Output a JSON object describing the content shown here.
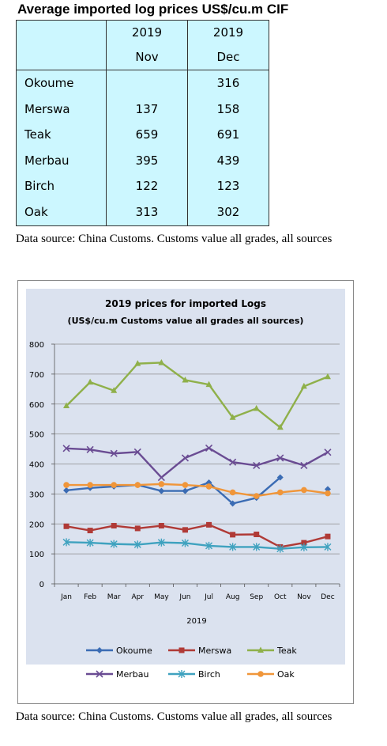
{
  "table": {
    "title": "Average imported log prices US$/cu.m CIF",
    "col1": {
      "year": "2019",
      "month": "Nov"
    },
    "col2": {
      "year": "2019",
      "month": "Dec"
    },
    "rows": [
      {
        "name": "Okoume",
        "nov": "",
        "dec": "316"
      },
      {
        "name": "Merswa",
        "nov": "137",
        "dec": "158"
      },
      {
        "name": "Teak",
        "nov": "659",
        "dec": "691"
      },
      {
        "name": "Merbau",
        "nov": "395",
        "dec": "439"
      },
      {
        "name": "Birch",
        "nov": "122",
        "dec": "123"
      },
      {
        "name": "Oak",
        "nov": "313",
        "dec": "302"
      }
    ]
  },
  "source_note_1": "Data source: China Customs. Customs value all grades, all sources",
  "source_note_2": "Data source: China Customs. Customs value all grades, all sources",
  "chart_data": {
    "type": "line",
    "title": "2019 prices for imported Logs",
    "subtitle": "(US$/cu.m Customs value all grades all sources)",
    "xlabel": "2019",
    "ylabel": "",
    "ylim": [
      0,
      800
    ],
    "yticks": [
      0,
      100,
      200,
      300,
      400,
      500,
      600,
      700,
      800
    ],
    "grid": true,
    "legend": "bottom",
    "categories": [
      "Jan",
      "Feb",
      "Mar",
      "Apr",
      "May",
      "Jun",
      "Jul",
      "Aug",
      "Sep",
      "Oct",
      "Nov",
      "Dec"
    ],
    "series": [
      {
        "name": "Okoume",
        "color": "#3b6cb4",
        "marker": "diamond",
        "values": [
          312,
          320,
          325,
          330,
          310,
          310,
          338,
          268,
          287,
          355,
          null,
          316
        ]
      },
      {
        "name": "Merswa",
        "color": "#b03a36",
        "marker": "square",
        "values": [
          192,
          178,
          194,
          185,
          194,
          180,
          197,
          164,
          165,
          123,
          137,
          158
        ]
      },
      {
        "name": "Teak",
        "color": "#8fb04a",
        "marker": "triangle",
        "values": [
          594,
          673,
          645,
          735,
          738,
          680,
          665,
          555,
          585,
          522,
          659,
          691
        ]
      },
      {
        "name": "Merbau",
        "color": "#6a4c93",
        "marker": "x",
        "values": [
          452,
          448,
          435,
          440,
          355,
          420,
          453,
          406,
          395,
          420,
          395,
          439
        ]
      },
      {
        "name": "Birch",
        "color": "#3fa2bf",
        "marker": "star",
        "values": [
          139,
          137,
          133,
          131,
          138,
          136,
          127,
          123,
          123,
          117,
          122,
          123
        ]
      },
      {
        "name": "Oak",
        "color": "#f0963a",
        "marker": "circle",
        "values": [
          330,
          330,
          330,
          330,
          333,
          330,
          325,
          305,
          293,
          305,
          313,
          302
        ]
      }
    ]
  }
}
